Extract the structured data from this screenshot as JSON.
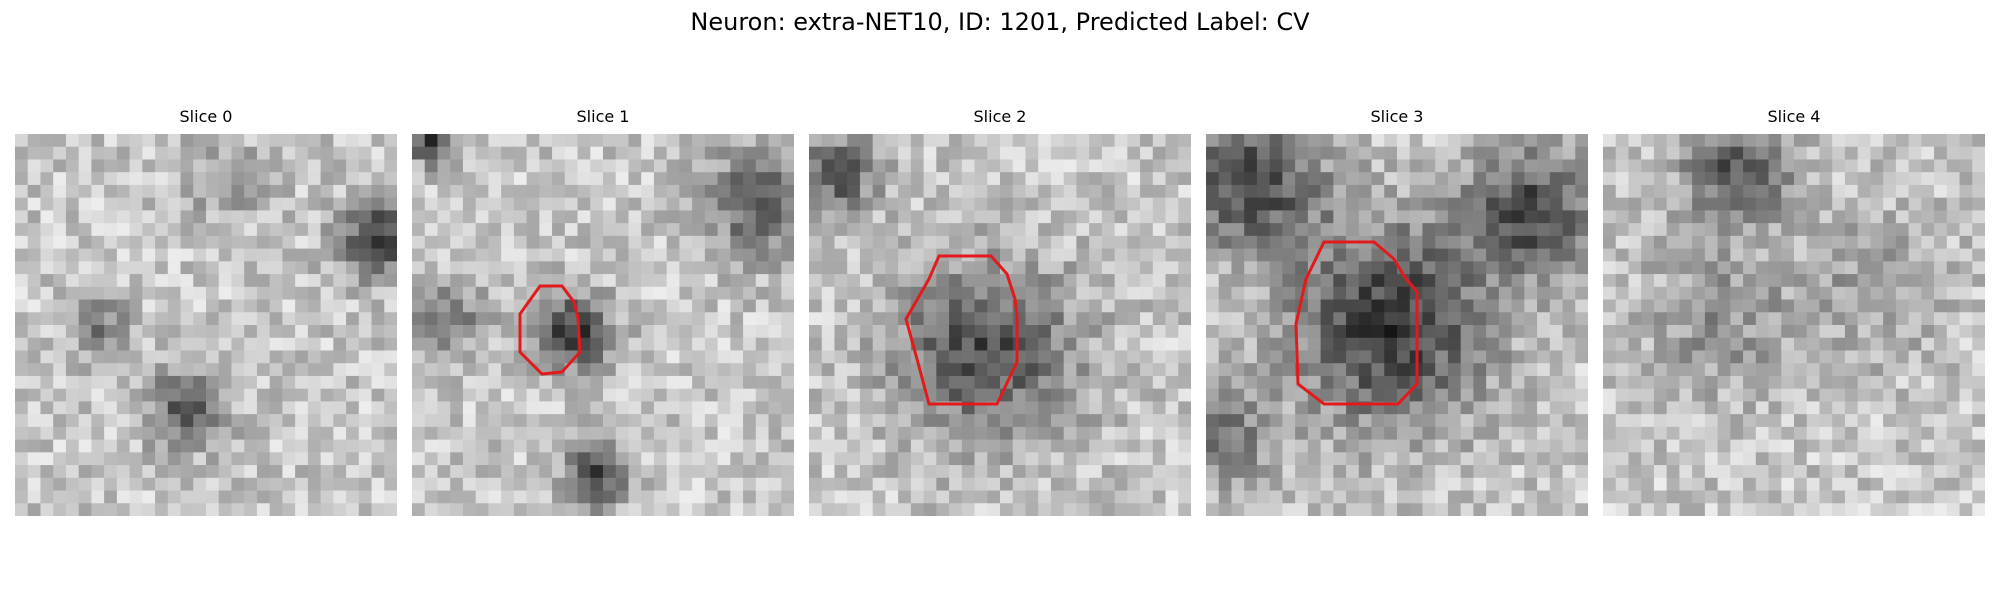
{
  "figure": {
    "title": "Neuron: extra-NET10, ID: 1201, Predicted Label: CV",
    "panels": [
      {
        "label": "Slice 0",
        "has_contour": false
      },
      {
        "label": "Slice 1",
        "has_contour": true
      },
      {
        "label": "Slice 2",
        "has_contour": true
      },
      {
        "label": "Slice 3",
        "has_contour": true
      },
      {
        "label": "Slice 4",
        "has_contour": false
      }
    ],
    "contour_color": "#e31a1c",
    "colormap": "grayscale"
  }
}
